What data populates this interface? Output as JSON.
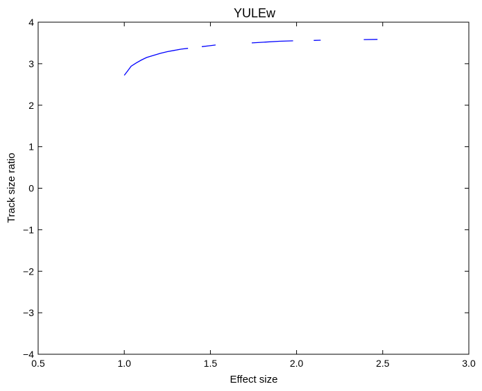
{
  "chart_data": {
    "type": "line",
    "title": "YULEw",
    "xlabel": "Effect size",
    "ylabel": "Track size ratio",
    "xlim": [
      0.5,
      3.0
    ],
    "ylim": [
      -4,
      4
    ],
    "xticks": [
      "0.5",
      "1.0",
      "1.5",
      "2.0",
      "2.5",
      "3.0"
    ],
    "yticks": [
      "4",
      "3",
      "2",
      "1",
      "0",
      "−1",
      "−2",
      "−3",
      "−4"
    ],
    "grid": false,
    "line_color": "#0000ff",
    "series": [
      {
        "segments": [
          [
            [
              1.0,
              2.72
            ],
            [
              1.02,
              2.83
            ],
            [
              1.04,
              2.94
            ],
            [
              1.07,
              3.02
            ],
            [
              1.1,
              3.09
            ],
            [
              1.13,
              3.15
            ],
            [
              1.17,
              3.2
            ],
            [
              1.21,
              3.25
            ],
            [
              1.25,
              3.29
            ],
            [
              1.29,
              3.32
            ],
            [
              1.33,
              3.35
            ],
            [
              1.37,
              3.37
            ]
          ],
          [
            [
              1.45,
              3.41
            ],
            [
              1.49,
              3.43
            ],
            [
              1.53,
              3.45
            ]
          ],
          [
            [
              1.74,
              3.5
            ],
            [
              1.82,
              3.52
            ],
            [
              1.9,
              3.54
            ],
            [
              1.98,
              3.55
            ]
          ],
          [
            [
              2.1,
              3.56
            ],
            [
              2.14,
              3.565
            ]
          ],
          [
            [
              2.39,
              3.58
            ],
            [
              2.47,
              3.585
            ]
          ]
        ]
      }
    ]
  }
}
